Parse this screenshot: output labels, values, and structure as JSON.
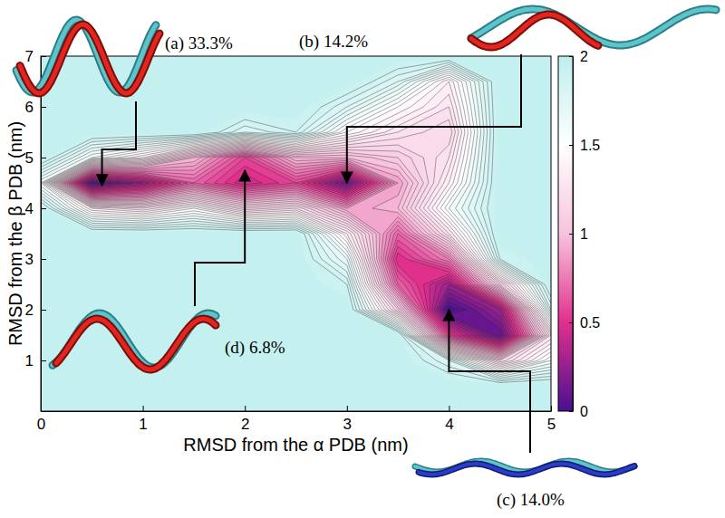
{
  "chart_data": {
    "type": "contour",
    "xlabel": "RMSD from the α PDB (nm)",
    "ylabel": "RMSD from the β PDB (nm)",
    "xlim": [
      0,
      5
    ],
    "ylim": [
      0,
      7
    ],
    "xticks": [
      0,
      1,
      2,
      3,
      4,
      5
    ],
    "yticks": [
      1,
      2,
      3,
      4,
      5,
      6,
      7
    ],
    "x": [
      0,
      0.5,
      1,
      1.5,
      2,
      2.5,
      3,
      3.5,
      4,
      4.5,
      5
    ],
    "y": [
      0,
      0.5,
      1,
      1.5,
      2,
      2.5,
      3,
      3.5,
      4,
      4.5,
      5,
      5.5,
      6,
      6.5,
      7
    ],
    "z": [
      [
        2,
        2,
        2,
        2,
        2,
        2,
        2,
        2,
        2,
        2,
        2
      ],
      [
        2,
        2,
        2,
        2,
        2,
        2,
        2,
        2,
        2,
        2,
        2
      ],
      [
        2,
        2,
        2,
        2,
        2,
        2,
        2,
        2,
        1.8,
        1.2,
        1.6
      ],
      [
        2,
        2,
        2,
        2,
        2,
        2,
        2,
        2,
        0.6,
        0.1,
        1.3
      ],
      [
        2,
        2,
        2,
        2,
        2,
        2,
        2,
        1.2,
        0.0,
        0.3,
        1.8
      ],
      [
        2,
        2,
        2,
        2,
        2,
        2,
        1.9,
        0.7,
        0.3,
        1.2,
        2
      ],
      [
        2,
        2,
        2,
        2,
        2,
        2,
        1.7,
        0.5,
        0.8,
        1.9,
        2
      ],
      [
        2,
        2,
        2,
        2,
        2,
        2,
        1.4,
        0.7,
        1.3,
        2,
        2
      ],
      [
        2,
        1.4,
        1.3,
        1.5,
        1.2,
        1.3,
        0.9,
        1.0,
        1.6,
        2,
        2
      ],
      [
        1.6,
        0.05,
        0.3,
        0.7,
        0.45,
        0.6,
        0.15,
        0.9,
        1.4,
        2,
        2
      ],
      [
        2,
        1.6,
        1.4,
        1.0,
        0.6,
        1.0,
        1.0,
        1.1,
        1.3,
        2,
        2
      ],
      [
        2,
        2,
        2,
        2,
        1.8,
        1.9,
        1.5,
        1.3,
        1.2,
        2,
        2
      ],
      [
        2,
        2,
        2,
        2,
        2,
        2,
        1.8,
        1.5,
        1.3,
        2,
        2
      ],
      [
        2,
        2,
        2,
        2,
        2,
        2,
        2,
        1.8,
        1.4,
        2,
        2
      ],
      [
        2,
        2,
        2,
        2,
        2,
        2,
        2,
        2,
        2,
        2,
        2
      ]
    ],
    "clim": [
      0,
      2
    ],
    "cticks": [
      0,
      0.5,
      1,
      1.5,
      2
    ],
    "annotations": [
      {
        "text": "(a) 33.3%",
        "x": 0.6,
        "y": 4.45
      },
      {
        "text": "(b) 14.2%",
        "x": 3.0,
        "y": 4.5
      },
      {
        "text": "(c) 14.0%",
        "x": 4.0,
        "y": 2.0
      },
      {
        "text": "(d) 6.8%",
        "x": 2.0,
        "y": 4.75
      }
    ]
  }
}
